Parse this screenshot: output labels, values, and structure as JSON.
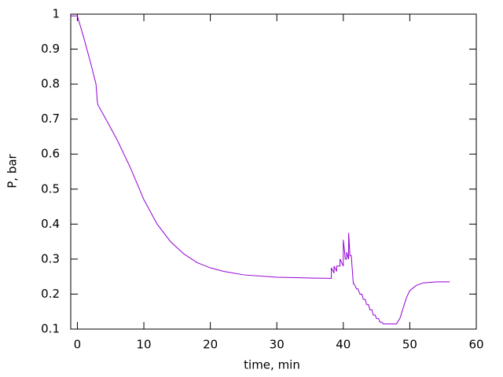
{
  "chart_data": {
    "type": "line",
    "xlabel": "time, min",
    "ylabel": "P, bar",
    "xlim": [
      -1,
      60
    ],
    "ylim": [
      0.1,
      1
    ],
    "xticks": [
      0,
      10,
      20,
      30,
      40,
      50,
      60
    ],
    "yticks": [
      0.1,
      0.2,
      0.3,
      0.4,
      0.5,
      0.6,
      0.7,
      0.8,
      0.9,
      1
    ],
    "color": "#9400d3",
    "x": [
      -1,
      0,
      1,
      2,
      2.8,
      3,
      3.1,
      4,
      6,
      8,
      10,
      12,
      14,
      16,
      18,
      20,
      22,
      25,
      30,
      35,
      38,
      38.2,
      38.2,
      38.6,
      38.6,
      39,
      39,
      39.5,
      39.5,
      40,
      40,
      40.3,
      40.5,
      40.5,
      40.8,
      40.8,
      41,
      41,
      41.2,
      41.5,
      41.6,
      42,
      42.2,
      42.5,
      42.8,
      43,
      43.3,
      43.5,
      43.8,
      44,
      44.3,
      44.5,
      44.8,
      45,
      45.3,
      45.5,
      45.8,
      46,
      46.3,
      47,
      48,
      48.5,
      49,
      49.5,
      50,
      51,
      52,
      54,
      56
    ],
    "y": [
      0.995,
      0.995,
      0.93,
      0.86,
      0.8,
      0.75,
      0.74,
      0.71,
      0.64,
      0.56,
      0.47,
      0.4,
      0.35,
      0.315,
      0.29,
      0.275,
      0.265,
      0.255,
      0.248,
      0.246,
      0.245,
      0.245,
      0.275,
      0.26,
      0.28,
      0.265,
      0.28,
      0.28,
      0.3,
      0.28,
      0.355,
      0.3,
      0.3,
      0.32,
      0.3,
      0.375,
      0.31,
      0.31,
      0.31,
      0.23,
      0.23,
      0.215,
      0.215,
      0.2,
      0.2,
      0.185,
      0.185,
      0.17,
      0.17,
      0.155,
      0.155,
      0.14,
      0.14,
      0.13,
      0.13,
      0.12,
      0.12,
      0.115,
      0.115,
      0.115,
      0.115,
      0.13,
      0.16,
      0.19,
      0.21,
      0.225,
      0.232,
      0.235,
      0.235
    ]
  }
}
